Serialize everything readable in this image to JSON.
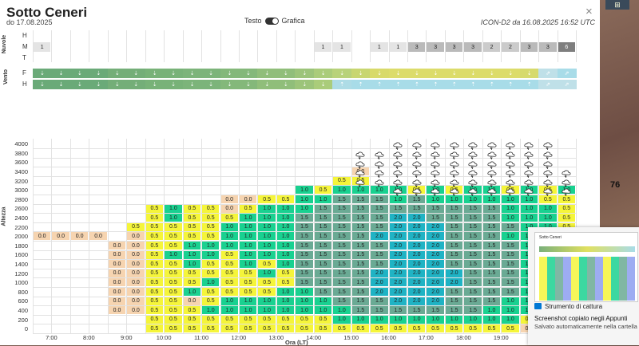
{
  "header": {
    "title": "Sotto Ceneri",
    "subtitle": "do 17.08.2025",
    "toggle_left": "Testo",
    "toggle_right": "Grafica",
    "model_info": "ICON-D2 da 16.08.2025 16:52 UTC",
    "close": "×"
  },
  "clouds": {
    "label": "Nuvole",
    "rows": [
      "H",
      "M",
      "T"
    ],
    "medium": [
      "1",
      "",
      "",
      "",
      "",
      "",
      "",
      "",
      "",
      "",
      "",
      "",
      "",
      "",
      "",
      "1",
      "1",
      "",
      "1",
      "1",
      "3",
      "3",
      "3",
      "3",
      "2",
      "2",
      "3",
      "3",
      "6"
    ],
    "medium_shade": [
      0.1,
      0,
      0,
      0,
      0,
      0,
      0,
      0,
      0,
      0,
      0,
      0,
      0,
      0,
      0,
      0.1,
      0.1,
      0,
      0.1,
      0.1,
      0.35,
      0.35,
      0.35,
      0.35,
      0.25,
      0.25,
      0.35,
      0.35,
      0.7
    ]
  },
  "wind": {
    "label": "Vento",
    "rows": [
      "F",
      "H"
    ],
    "colors_f": [
      "#6aaa78",
      "#6aaa78",
      "#6aaa78",
      "#6aaa78",
      "#74ae78",
      "#74ae78",
      "#78b278",
      "#78b278",
      "#7cb47a",
      "#7cb47a",
      "#84b87a",
      "#84b87a",
      "#90be7a",
      "#90be7a",
      "#9cc47a",
      "#aacc7a",
      "#b8d27a",
      "#c8d670",
      "#d8da6a",
      "#dcdc6a",
      "#dcdc6a",
      "#dcdc6a",
      "#dcdc6a",
      "#dcdc6a",
      "#dcdc6a",
      "#dcdc6a",
      "#d6da6c",
      "#bfe0e8",
      "#a8dce8"
    ],
    "colors_h": [
      "#6aaa78",
      "#6aaa78",
      "#6aaa78",
      "#6aaa78",
      "#74ae78",
      "#74ae78",
      "#78b278",
      "#78b278",
      "#7cb47a",
      "#7cb47a",
      "#84b87a",
      "#84b87a",
      "#90be7a",
      "#90be7a",
      "#9cc47a",
      "#aacc7a",
      "#aedce6",
      "#a8dce8",
      "#a8dce8",
      "#a8dce8",
      "#a8dce8",
      "#a8dce8",
      "#a8dce8",
      "#a8dce8",
      "#a8dce8",
      "#a8dce8",
      "#a8dce8",
      "#bfe0e8",
      "#bfe0e8"
    ],
    "arrow_f": [
      "⇣",
      "⇣",
      "⇣",
      "⇣",
      "⇣",
      "⇣",
      "⇣",
      "⇣",
      "⇣",
      "⇣",
      "⇣",
      "⇣",
      "⇣",
      "⇣",
      "⇣",
      "⇣",
      "⇣",
      "⇣",
      "⇣",
      "⇣",
      "⇣",
      "⇣",
      "⇣",
      "⇣",
      "⇣",
      "⇣",
      "⇣",
      "⇗",
      "⇗"
    ],
    "arrow_h": [
      "⇣",
      "⇣",
      "⇣",
      "⇣",
      "⇣",
      "⇣",
      "⇣",
      "⇣",
      "⇣",
      "⇣",
      "⇣",
      "⇣",
      "⇣",
      "⇣",
      "⇣",
      "⇣",
      "⇡",
      "⇡",
      "⇡",
      "⇡",
      "⇡",
      "⇡",
      "⇡",
      "⇡",
      "⇡",
      "⇡",
      "⇡",
      "⇗",
      "⇗"
    ]
  },
  "chart_data": {
    "type": "heatmap",
    "ylabel": "Altezza",
    "xlabel": "Ora (LT)",
    "y_levels": [
      0,
      200,
      400,
      600,
      800,
      1000,
      1200,
      1400,
      1600,
      1800,
      2000,
      2200,
      2400,
      2600,
      2800,
      3000,
      3200,
      3400,
      3600,
      3800,
      4000
    ],
    "x_ticks": [
      "7:00",
      "8:00",
      "9:00",
      "10:00",
      "11:00",
      "12:00",
      "13:00",
      "14:00",
      "15:00",
      "16:00",
      "17:00",
      "18:00",
      "19:00"
    ],
    "columns": [
      {
        "bottom": 11,
        "top": 12,
        "values": [
          "0.0"
        ]
      },
      {
        "bottom": 11,
        "top": 11,
        "values": [
          "0.0"
        ]
      },
      {
        "bottom": 11,
        "top": 11,
        "values": [
          "0.0"
        ]
      },
      {
        "bottom": 11,
        "top": 11,
        "values": [
          "0.0"
        ]
      },
      {
        "bottom": 3,
        "top": 10,
        "values": [
          "0.0",
          "0.0",
          "0.0",
          "0.0",
          "0.0",
          "0.0",
          "0.0",
          "0.0"
        ]
      },
      {
        "bottom": 3,
        "top": 12,
        "values": [
          "0.0",
          "0.0",
          "0.0",
          "0.0",
          "0.0",
          "0.0",
          "0.0",
          "0.0",
          "0.0",
          "0.5"
        ]
      },
      {
        "bottom": 1,
        "top": 14,
        "values": [
          "0.5",
          "0.5",
          "0.5",
          "0.5",
          "0.5",
          "0.5",
          "0.5",
          "0.5",
          "0.5",
          "0.5",
          "0.5",
          "0.5",
          "0.5",
          "0.5"
        ]
      },
      {
        "bottom": 1,
        "top": 14,
        "values": [
          "0.5",
          "0.5",
          "0.5",
          "0.5",
          "0.5",
          "0.5",
          "0.5",
          "0.5",
          "1.0",
          "0.5",
          "0.5",
          "0.5",
          "1.0",
          "1.0"
        ]
      },
      {
        "bottom": 1,
        "top": 14,
        "values": [
          "0.5",
          "0.5",
          "0.5",
          "0.0",
          "1.0",
          "0.5",
          "0.5",
          "1.0",
          "1.0",
          "1.0",
          "0.5",
          "0.5",
          "0.5",
          "0.5"
        ]
      },
      {
        "bottom": 1,
        "top": 14,
        "values": [
          "0.5",
          "0.5",
          "1.0",
          "0.5",
          "0.5",
          "1.0",
          "0.5",
          "0.5",
          "1.0",
          "1.0",
          "0.5",
          "0.5",
          "0.5",
          "0.5"
        ]
      },
      {
        "bottom": 1,
        "top": 15,
        "values": [
          "0.5",
          "0.5",
          "1.0",
          "1.0",
          "0.5",
          "0.5",
          "0.5",
          "0.5",
          "0.5",
          "1.0",
          "1.0",
          "1.0",
          "0.5",
          "0.0",
          "0.0"
        ]
      },
      {
        "bottom": 1,
        "top": 15,
        "values": [
          "0.5",
          "0.5",
          "1.0",
          "1.0",
          "0.5",
          "0.5",
          "0.5",
          "1.0",
          "1.0",
          "1.0",
          "1.0",
          "1.0",
          "1.0",
          "0.5",
          "0.0"
        ]
      },
      {
        "bottom": 1,
        "top": 15,
        "values": [
          "0.5",
          "0.5",
          "1.0",
          "1.0",
          "0.5",
          "0.5",
          "1.0",
          "0.5",
          "1.0",
          "1.0",
          "1.0",
          "1.0",
          "1.0",
          "1.0",
          "0.5"
        ]
      },
      {
        "bottom": 1,
        "top": 15,
        "values": [
          "0.5",
          "0.5",
          "1.0",
          "1.0",
          "1.0",
          "0.5",
          "0.5",
          "1.0",
          "1.0",
          "1.0",
          "1.0",
          "1.0",
          "1.0",
          "1.0",
          "0.5"
        ]
      },
      {
        "bottom": 1,
        "top": 16,
        "values": [
          "0.5",
          "0.5",
          "1.0",
          "1.0",
          "1.0",
          "1.5",
          "1.5",
          "1.5",
          "1.5",
          "1.5",
          "1.5",
          "1.5",
          "1.5",
          "1.0",
          "1.0",
          "1.0"
        ]
      },
      {
        "bottom": 1,
        "top": 16,
        "values": [
          "0.5",
          "0.5",
          "1.0",
          "1.0",
          "1.5",
          "1.5",
          "1.5",
          "1.5",
          "1.5",
          "1.5",
          "1.5",
          "1.5",
          "1.5",
          "1.5",
          "1.0",
          "0.5"
        ]
      },
      {
        "bottom": 1,
        "top": 17,
        "values": [
          "0.5",
          "1.0",
          "1.0",
          "1.5",
          "1.5",
          "1.5",
          "1.5",
          "1.5",
          "1.5",
          "1.5",
          "1.5",
          "1.5",
          "1.5",
          "1.5",
          "1.5",
          "1.0",
          "0.5"
        ]
      },
      {
        "bottom": 1,
        "top": 18,
        "values": [
          "0.5",
          "1.0",
          "1.5",
          "1.5",
          "1.5",
          "1.5",
          "1.5",
          "1.5",
          "1.5",
          "1.5",
          "1.5",
          "1.5",
          "1.5",
          "1.5",
          "1.5",
          "1.0",
          "0.5",
          "0.0"
        ]
      },
      {
        "bottom": 1,
        "top": 16,
        "values": [
          "0.5",
          "1.0",
          "1.5",
          "1.5",
          "2.0",
          "2.0",
          "2.0",
          "1.5",
          "1.5",
          "1.5",
          "2.0",
          "1.5",
          "1.5",
          "1.5",
          "1.5",
          "1.0"
        ]
      },
      {
        "bottom": 1,
        "top": 16,
        "values": [
          "0.5",
          "1.0",
          "1.5",
          "2.0",
          "2.0",
          "2.0",
          "2.0",
          "2.0",
          "2.0",
          "2.0",
          "2.0",
          "2.0",
          "2.0",
          "1.5",
          "1.0",
          "1.0"
        ]
      },
      {
        "bottom": 1,
        "top": 16,
        "values": [
          "0.5",
          "1.0",
          "1.5",
          "2.0",
          "2.0",
          "2.0",
          "2.0",
          "2.0",
          "2.0",
          "2.0",
          "2.0",
          "2.0",
          "2.0",
          "1.5",
          "1.5",
          "0.5"
        ]
      },
      {
        "bottom": 1,
        "top": 16,
        "values": [
          "0.5",
          "1.0",
          "1.5",
          "2.0",
          "2.0",
          "2.0",
          "2.0",
          "2.0",
          "2.0",
          "2.0",
          "2.0",
          "2.0",
          "1.5",
          "1.5",
          "1.0",
          "1.0"
        ]
      },
      {
        "bottom": 1,
        "top": 16,
        "values": [
          "0.5",
          "1.0",
          "1.5",
          "1.5",
          "1.5",
          "2.0",
          "2.0",
          "1.5",
          "1.5",
          "1.5",
          "1.5",
          "1.5",
          "1.5",
          "1.5",
          "1.0",
          "0.5"
        ]
      },
      {
        "bottom": 1,
        "top": 16,
        "values": [
          "0.5",
          "1.0",
          "1.5",
          "1.5",
          "1.5",
          "1.5",
          "1.5",
          "1.5",
          "1.5",
          "1.5",
          "1.5",
          "1.5",
          "1.5",
          "1.5",
          "1.0",
          "1.0"
        ]
      },
      {
        "bottom": 1,
        "top": 16,
        "values": [
          "0.5",
          "1.0",
          "1.0",
          "1.5",
          "1.5",
          "1.5",
          "1.5",
          "1.5",
          "1.5",
          "1.5",
          "1.5",
          "1.5",
          "1.5",
          "1.5",
          "1.0",
          "1.0"
        ]
      },
      {
        "bottom": 1,
        "top": 16,
        "values": [
          "0.5",
          "1.0",
          "1.0",
          "1.0",
          "1.5",
          "1.5",
          "1.5",
          "1.5",
          "1.5",
          "1.5",
          "1.0",
          "1.5",
          "1.0",
          "1.0",
          "1.0",
          "0.5"
        ]
      },
      {
        "bottom": 1,
        "top": 16,
        "values": [
          "0.0",
          "0.5",
          "1.0",
          "1.0",
          "1.0",
          "1.0",
          "1.0",
          "1.0",
          "1.0",
          "1.0",
          "1.0",
          "1.0",
          "1.0",
          "1.0",
          "1.0",
          "1.0"
        ]
      },
      {
        "bottom": 1,
        "top": 16,
        "values": [
          "0.0",
          "0.5",
          "0.5",
          "1.0",
          "1.0",
          "1.0",
          "1.0",
          "1.0",
          "1.0",
          "1.0",
          "0.5",
          "1.0",
          "1.0",
          "1.0",
          "0.5",
          "0.5"
        ]
      },
      {
        "bottom": 1,
        "top": 16,
        "values": [
          "0.0",
          "0.0",
          "0.5",
          "0.5",
          "0.5",
          "0.5",
          "0.5",
          "0.5",
          "0.5",
          "0.5",
          "0.5",
          "0.5",
          "0.5",
          "0.5",
          "0.5",
          "1.0"
        ]
      }
    ],
    "storm_ranges": [
      [
        0,
        0
      ],
      [
        0,
        0
      ],
      [
        0,
        0
      ],
      [
        0,
        0
      ],
      [
        0,
        0
      ],
      [
        0,
        0
      ],
      [
        0,
        0
      ],
      [
        0,
        0
      ],
      [
        0,
        0
      ],
      [
        0,
        0
      ],
      [
        0,
        0
      ],
      [
        0,
        0
      ],
      [
        0,
        0
      ],
      [
        0,
        0
      ],
      [
        0,
        0
      ],
      [
        0,
        0
      ],
      [
        0,
        0
      ],
      [
        17,
        20
      ],
      [
        17,
        20
      ],
      [
        16,
        21
      ],
      [
        16,
        21
      ],
      [
        16,
        21
      ],
      [
        16,
        21
      ],
      [
        16,
        21
      ],
      [
        16,
        21
      ],
      [
        16,
        21
      ],
      [
        16,
        21
      ],
      [
        16,
        21
      ],
      [
        16,
        18
      ]
    ],
    "value_colors": {
      "0.0": "#f6d4b0",
      "0.5": "#f5f53a",
      "1.0": "#19d190",
      "1.5": "#6aaa94",
      "2.0": "#1fb3c4"
    }
  },
  "map": {
    "label": "76",
    "badge": "⊞"
  },
  "toast": {
    "app": "Strumento di cattura",
    "heading": "Screenshot copiato negli Appunti",
    "body": "Salvato automaticamente nella cartella Scre",
    "preview_title": "Sotto Ceneri"
  }
}
